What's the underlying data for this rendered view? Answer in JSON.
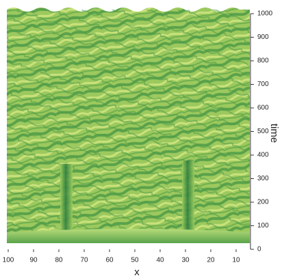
{
  "chart_data": {
    "type": "surface",
    "xlabel": "x",
    "ylabel": "time",
    "xlim": [
      100,
      0
    ],
    "xticks": [
      100,
      90,
      80,
      70,
      60,
      50,
      40,
      30,
      20,
      10
    ],
    "ylim": [
      0,
      1000
    ],
    "yticks": [
      0,
      100,
      200,
      300,
      400,
      500,
      600,
      700,
      800,
      900,
      1000
    ]
  }
}
